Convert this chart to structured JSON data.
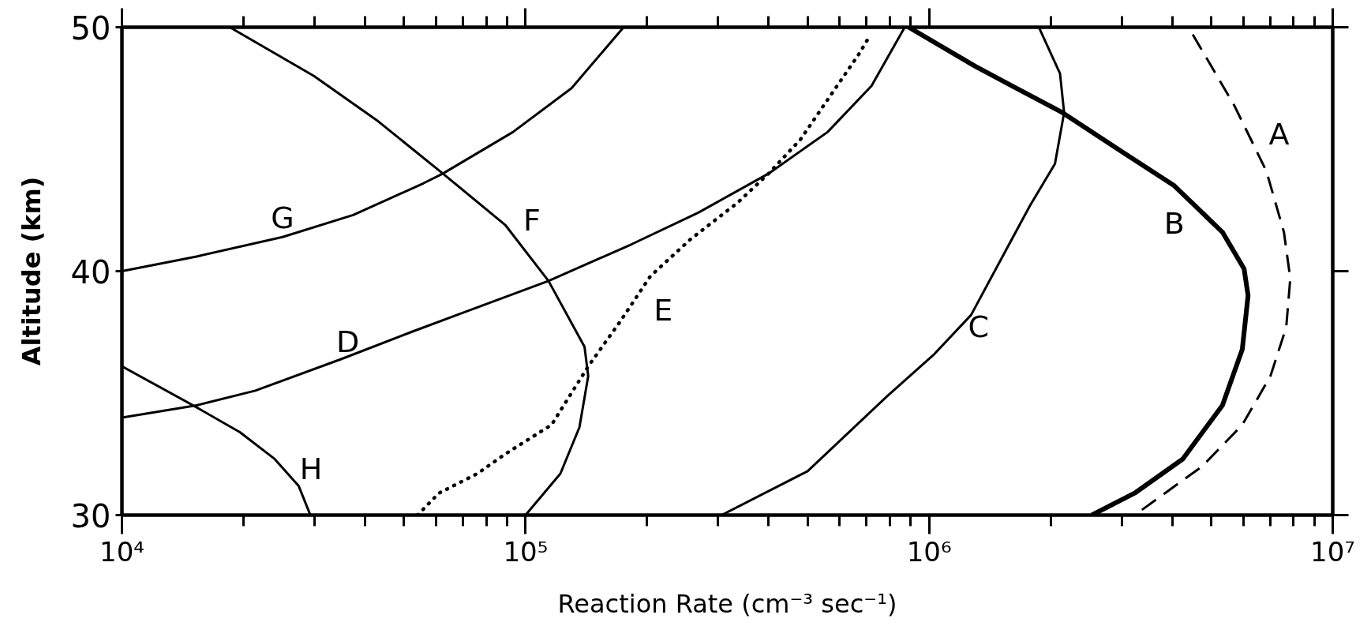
{
  "chart_data": {
    "type": "line",
    "xlabel": "Reaction Rate (cm⁻³ sec⁻¹)",
    "ylabel": "Altitude (km)",
    "log": "x",
    "grid": false,
    "line_style": "solid",
    "xlim": [
      10000,
      10000000
    ],
    "ylim": [
      30,
      50
    ],
    "xticks": [
      {
        "value": 10000,
        "label": "10⁴"
      },
      {
        "value": 20000,
        "label": null
      },
      {
        "value": 30000,
        "label": null
      },
      {
        "value": 40000,
        "label": null
      },
      {
        "value": 50000,
        "label": null
      },
      {
        "value": 60000,
        "label": null
      },
      {
        "value": 70000,
        "label": null
      },
      {
        "value": 80000,
        "label": null
      },
      {
        "value": 90000,
        "label": null
      },
      {
        "value": 100000,
        "label": "10⁵"
      },
      {
        "value": 200000,
        "label": null
      },
      {
        "value": 300000,
        "label": null
      },
      {
        "value": 400000,
        "label": null
      },
      {
        "value": 500000,
        "label": null
      },
      {
        "value": 600000,
        "label": null
      },
      {
        "value": 700000,
        "label": null
      },
      {
        "value": 800000,
        "label": null
      },
      {
        "value": 900000,
        "label": null
      },
      {
        "value": 1000000,
        "label": "10⁶"
      },
      {
        "value": 2000000,
        "label": null
      },
      {
        "value": 3000000,
        "label": null
      },
      {
        "value": 4000000,
        "label": null
      },
      {
        "value": 5000000,
        "label": null
      },
      {
        "value": 6000000,
        "label": null
      },
      {
        "value": 7000000,
        "label": null
      },
      {
        "value": 8000000,
        "label": null
      },
      {
        "value": 9000000,
        "label": null
      },
      {
        "value": 10000000,
        "label": "10⁷"
      }
    ],
    "yticks": [
      30,
      40,
      50
    ],
    "series": [
      {
        "name": "A",
        "color": "#000000",
        "line_style": "dashed",
        "x": [
          4500000,
          5700000,
          6850000,
          7570000,
          7850000,
          7670000,
          7010000,
          5970000,
          4750000,
          3230000
        ],
        "values": [
          49.7,
          46.8,
          44.1,
          41.6,
          39.7,
          37.7,
          35.7,
          33.7,
          32.0,
          30
        ]
      },
      {
        "name": "B",
        "color": "#000000",
        "x": [
          890000,
          1300000,
          2140000,
          3000000,
          4050000,
          5330000,
          6030000,
          6170000,
          5970000,
          5330000,
          4250000,
          3230000,
          2530000
        ],
        "values": [
          50,
          48.4,
          46.5,
          44.9,
          43.5,
          41.6,
          40.1,
          39.0,
          36.8,
          34.5,
          32.3,
          30.9,
          30
        ]
      },
      {
        "name": "C",
        "color": "#000000",
        "x": [
          306000,
          500000,
          790000,
          1030000,
          1270000,
          1520000,
          1780000,
          2050000,
          2160000,
          2110000,
          1870000
        ],
        "values": [
          30,
          31.8,
          34.9,
          36.6,
          38.2,
          40.6,
          42.7,
          44.4,
          46.5,
          48.1,
          50
        ]
      },
      {
        "name": "D",
        "color": "#000000",
        "x": [
          10000,
          15300,
          21400,
          35000,
          52000,
          70000,
          114000,
          183000,
          268000,
          400000,
          560000,
          720000,
          870000
        ],
        "values": [
          34.0,
          34.5,
          35.1,
          36.4,
          37.5,
          38.3,
          39.6,
          41.1,
          42.4,
          44.0,
          45.7,
          47.6,
          50
        ]
      },
      {
        "name": "E",
        "color": "#000000",
        "line_style": "dotted",
        "x": [
          54000,
          61000,
          76000,
          89000,
          116000,
          143000,
          171000,
          204000,
          256000,
          335000,
          400000,
          480000,
          575000,
          670000,
          710000
        ],
        "values": [
          30,
          30.9,
          31.7,
          32.5,
          33.7,
          36.1,
          37.9,
          39.8,
          41.3,
          42.8,
          44.0,
          45.4,
          47.3,
          48.9,
          49.6
        ]
      },
      {
        "name": "F",
        "color": "#000000",
        "x": [
          18500,
          29900,
          42700,
          62400,
          89000,
          114000,
          140000,
          143000,
          136000,
          122000,
          100000
        ],
        "values": [
          50,
          48.0,
          46.2,
          44.0,
          41.9,
          39.6,
          36.9,
          35.7,
          33.6,
          31.7,
          30
        ]
      },
      {
        "name": "G",
        "color": "#000000",
        "x": [
          10000,
          15300,
          25000,
          37400,
          55800,
          62400,
          93000,
          130000,
          175000
        ],
        "values": [
          40.0,
          40.6,
          41.4,
          42.3,
          43.6,
          44.0,
          45.7,
          47.5,
          50
        ]
      },
      {
        "name": "H",
        "color": "#000000",
        "x": [
          10000,
          15000,
          19600,
          23900,
          27400,
          29300
        ],
        "values": [
          36.1,
          34.5,
          33.4,
          32.3,
          31.2,
          30
        ]
      }
    ]
  }
}
